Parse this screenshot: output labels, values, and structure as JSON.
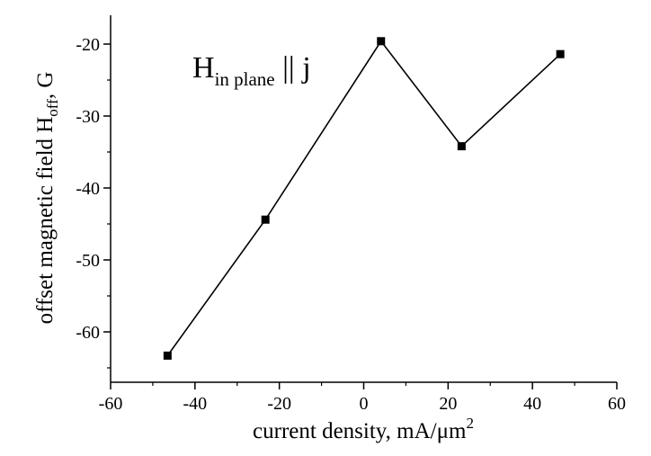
{
  "chart_data": {
    "type": "line",
    "title": "",
    "xlabel": {
      "text": "current density, mA/μm",
      "superscript": "2"
    },
    "ylabel": {
      "text": "offset magnetic field H",
      "subscript": "off",
      "suffix": ", G"
    },
    "annotation": {
      "main": "H",
      "subscript": "in plane",
      "suffix": " || j"
    },
    "xlim": [
      -60,
      60
    ],
    "ylim": [
      -67,
      -16
    ],
    "x_ticks": [
      -60,
      -40,
      -20,
      0,
      20,
      40,
      60
    ],
    "y_ticks": [
      -60,
      -50,
      -40,
      -30,
      -20
    ],
    "x_tick_labels": [
      "-60",
      "-40",
      "-20",
      "0",
      "20",
      "40",
      "60"
    ],
    "y_tick_labels": [
      "-60",
      "-50",
      "-40",
      "-30",
      "-20"
    ],
    "grid": false,
    "series": [
      {
        "x": [
          -46.5,
          -23.3,
          4.1,
          23.2,
          46.6
        ],
        "y": [
          -63.3,
          -44.4,
          -19.6,
          -34.2,
          -21.4
        ],
        "marker": "square",
        "color": "#000000"
      }
    ]
  }
}
